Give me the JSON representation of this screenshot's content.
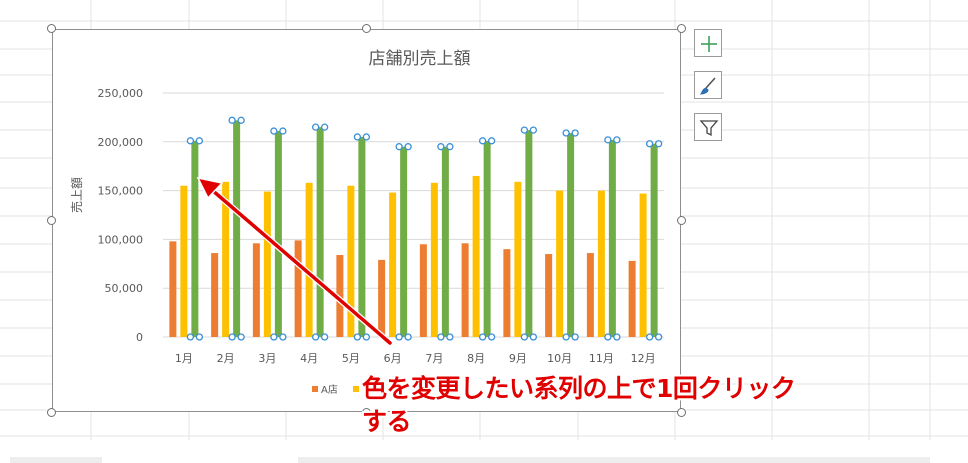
{
  "chart_data": {
    "type": "bar",
    "title": "店舗別売上額",
    "ylabel": "売上額",
    "xlabel": "",
    "ylim": [
      0,
      250000
    ],
    "yticks": [
      "0",
      "50,000",
      "100,000",
      "150,000",
      "200,000",
      "250,000"
    ],
    "categories": [
      "1月",
      "2月",
      "3月",
      "4月",
      "5月",
      "6月",
      "7月",
      "8月",
      "9月",
      "10月",
      "11月",
      "12月"
    ],
    "series": [
      {
        "name": "A店",
        "color": "#ed7d31",
        "values": [
          98000,
          86000,
          96000,
          99000,
          84000,
          79000,
          95000,
          96000,
          90000,
          85000,
          86000,
          78000
        ]
      },
      {
        "name": "",
        "color": "#ffc000",
        "values": [
          155000,
          159000,
          149000,
          158000,
          155000,
          148000,
          158000,
          165000,
          159000,
          150000,
          150000,
          147000
        ]
      },
      {
        "name": "",
        "color": "#70ad47",
        "values": [
          201000,
          222000,
          211000,
          215000,
          205000,
          195000,
          195000,
          201000,
          212000,
          209000,
          202000,
          198000
        ]
      }
    ],
    "selected_series": 2,
    "legend_position": "bottom",
    "grid": true
  },
  "side_buttons": [
    {
      "icon": "plus-icon",
      "color": "#3aa15a"
    },
    {
      "icon": "brush-icon",
      "color": "#2f6fb5"
    },
    {
      "icon": "filter-icon",
      "color": "#444444"
    }
  ],
  "annotation": {
    "line1": "色を変更したい系列の上で1回クリック",
    "line2": "する",
    "color": "#e00000"
  }
}
